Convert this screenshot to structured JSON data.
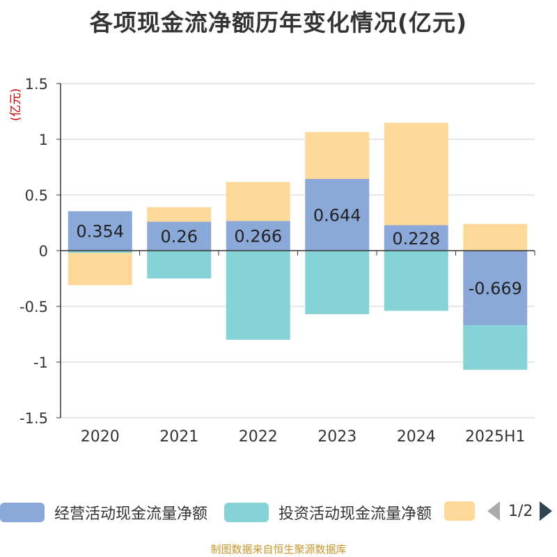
{
  "title": "各项现金流净额历年变化情况(亿元)",
  "unit": "(亿元)",
  "source": "制图数据来自恒生聚源数据库",
  "legend_page": "1/2",
  "colors": {
    "operating": "#8aa8d8",
    "investing": "#86d3d7",
    "third": "#fdd999",
    "axis": "#333333",
    "grid": "#cccccc"
  },
  "legend": [
    {
      "name": "经营活动现金流量净额",
      "color": "#8aa8d8"
    },
    {
      "name": "投资活动现金流量净额",
      "color": "#86d3d7"
    },
    {
      "name": "",
      "color": "#fdd999"
    }
  ],
  "chart_data": {
    "type": "bar",
    "stacked": true,
    "categories": [
      "2020",
      "2021",
      "2022",
      "2023",
      "2024",
      "2025H1"
    ],
    "ylim": [
      -1.5,
      1.5
    ],
    "yticks": [
      "-1.5",
      "-1",
      "-0.5",
      "0",
      "0.5",
      "1",
      "1.5"
    ],
    "ytick_values": [
      -1.5,
      -1,
      -0.5,
      0,
      0.5,
      1,
      1.5
    ],
    "grid": true,
    "legend_position": "bottom",
    "series": [
      {
        "name": "经营活动现金流量净额",
        "values": [
          0.354,
          0.26,
          0.266,
          0.644,
          0.228,
          -0.669
        ],
        "labels": [
          "0.354",
          "0.26",
          "0.266",
          "0.644",
          "0.228",
          "-0.669"
        ]
      },
      {
        "name": "投资活动现金流量净额",
        "values": [
          -0.02,
          -0.25,
          -0.8,
          -0.57,
          -0.54,
          -0.4
        ]
      },
      {
        "values": [
          -0.29,
          0.13,
          0.35,
          0.42,
          0.92,
          0.24
        ]
      }
    ]
  }
}
